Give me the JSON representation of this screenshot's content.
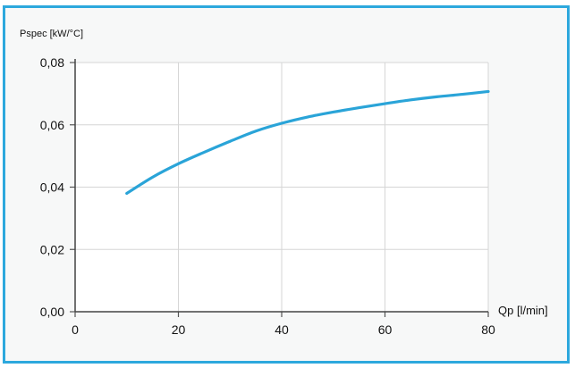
{
  "chart_data": {
    "type": "line",
    "title": "",
    "xlabel": "Qp [l/min]",
    "ylabel": "Pspec [kW/°C]",
    "xlim": [
      0,
      80
    ],
    "ylim": [
      0,
      0.08
    ],
    "x_ticks": [
      0,
      20,
      40,
      60,
      80
    ],
    "x_tick_labels": [
      "0",
      "20",
      "40",
      "60",
      "80"
    ],
    "y_ticks": [
      0,
      0.02,
      0.04,
      0.06,
      0.08
    ],
    "y_tick_labels": [
      "0,00",
      "0,02",
      "0,04",
      "0,06",
      "0,08"
    ],
    "grid": true,
    "series": [
      {
        "color": "#2aa4d8",
        "x": [
          10,
          15,
          20,
          25,
          30,
          35,
          40,
          45,
          50,
          55,
          60,
          65,
          70,
          75,
          80
        ],
        "y": [
          0.038,
          0.0432,
          0.0475,
          0.0512,
          0.0547,
          0.058,
          0.0605,
          0.0625,
          0.0641,
          0.0655,
          0.0668,
          0.068,
          0.069,
          0.0698,
          0.0707
        ]
      }
    ]
  }
}
